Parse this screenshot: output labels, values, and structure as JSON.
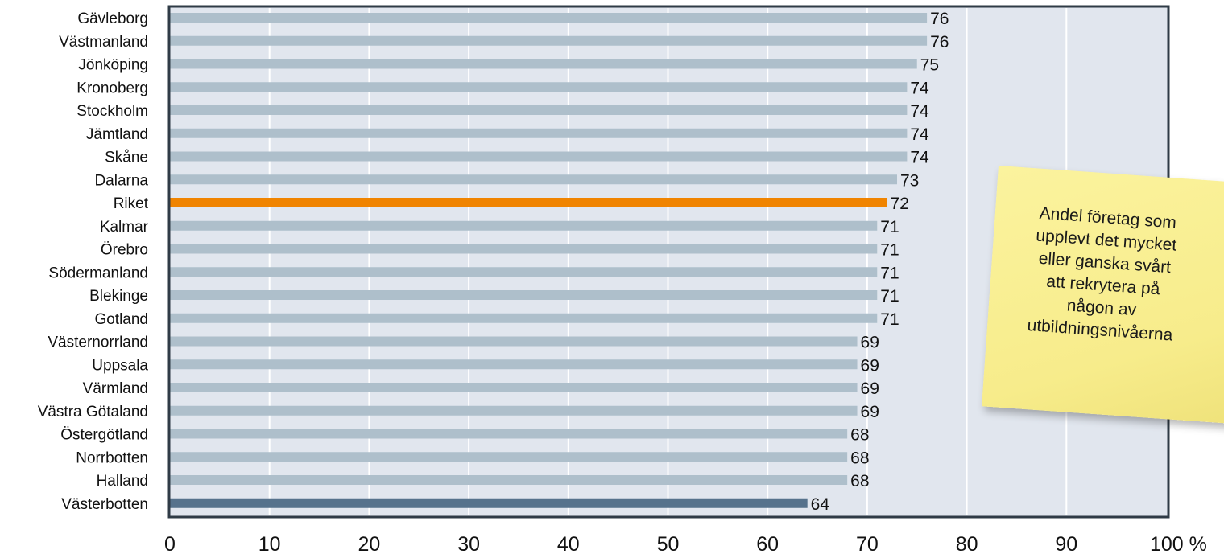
{
  "chart_data": {
    "type": "bar",
    "orientation": "horizontal",
    "categories": [
      "Gävleborg",
      "Västmanland",
      "Jönköping",
      "Kronoberg",
      "Stockholm",
      "Jämtland",
      "Skåne",
      "Dalarna",
      "Riket",
      "Kalmar",
      "Örebro",
      "Södermanland",
      "Blekinge",
      "Gotland",
      "Västernorrland",
      "Uppsala",
      "Värmland",
      "Västra Götaland",
      "Östergötland",
      "Norrbotten",
      "Halland",
      "Västerbotten"
    ],
    "values": [
      76,
      76,
      75,
      74,
      74,
      74,
      74,
      73,
      72,
      71,
      71,
      71,
      71,
      71,
      69,
      69,
      69,
      69,
      68,
      68,
      68,
      64
    ],
    "value_labels": [
      "76",
      "76",
      "75",
      "74",
      "74",
      "74",
      "74",
      "73",
      "72",
      "71",
      "71",
      "71",
      "71",
      "71",
      "69",
      "69",
      "69",
      "69",
      "68",
      "68",
      "68",
      "64"
    ],
    "x_ticks": [
      "0",
      "10",
      "20",
      "30",
      "40",
      "50",
      "60",
      "70",
      "80",
      "90",
      "100 %"
    ],
    "xlim": [
      0,
      100
    ],
    "grid": true,
    "legend": "none",
    "highlight": {
      "Riket": "#f08400",
      "Västerbotten": "#56728c"
    },
    "colors": {
      "bar_default": "#aebfcb",
      "plot_background": "#e1e6ee",
      "gridline": "#ffffff",
      "frame": "#2f3b46"
    }
  },
  "annotation": {
    "text": "Andel företag som\nupplevt det mycket\neller ganska svårt\natt rekrytera på\nnågon av\nutbildningsnivåerna"
  }
}
